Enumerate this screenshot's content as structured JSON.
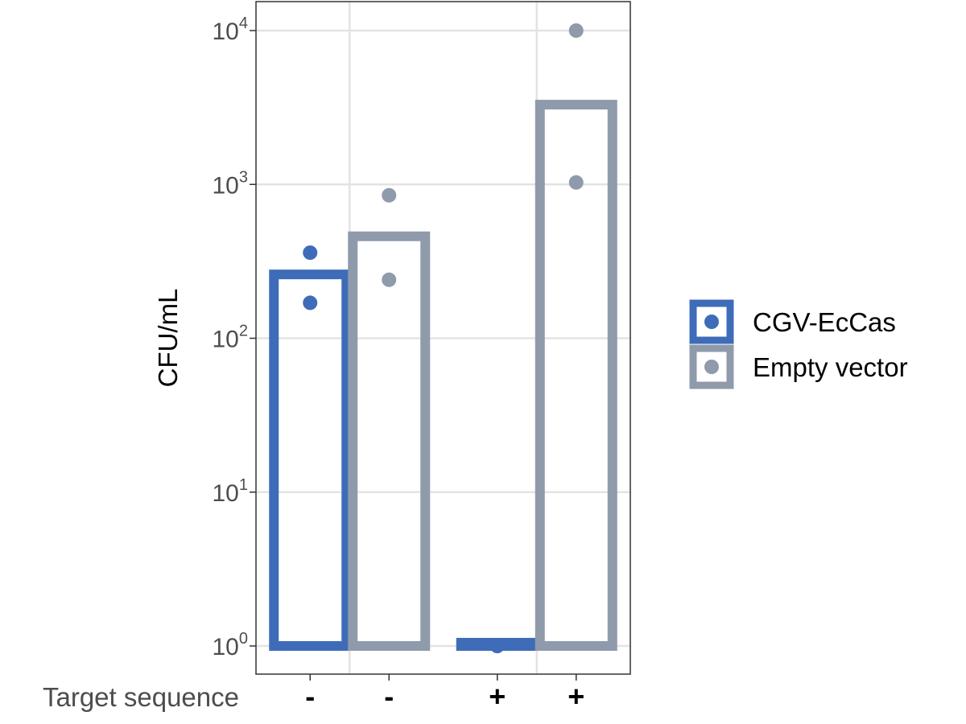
{
  "chart_data": {
    "type": "bar",
    "ylabel": "CFU/mL",
    "y_scale": "log10",
    "ylim": [
      1,
      10000
    ],
    "y_ticks": [
      {
        "value": 1,
        "base": "10",
        "exp": "0"
      },
      {
        "value": 10,
        "base": "10",
        "exp": "1"
      },
      {
        "value": 100,
        "base": "10",
        "exp": "2"
      },
      {
        "value": 1000,
        "base": "10",
        "exp": "3"
      },
      {
        "value": 10000,
        "base": "10",
        "exp": "4"
      }
    ],
    "x_row_label": "Target sequence",
    "groups": [
      "-",
      "+"
    ],
    "bars": [
      {
        "series": "CGV-EcCas",
        "group": "-",
        "label": "-",
        "value": 260,
        "points": [
          360,
          170
        ]
      },
      {
        "series": "Empty vector",
        "group": "-",
        "label": "-",
        "value": 460,
        "points": [
          850,
          240
        ]
      },
      {
        "series": "CGV-EcCas",
        "group": "+",
        "label": "+",
        "value": 1.05,
        "points": [
          1,
          1
        ]
      },
      {
        "series": "Empty vector",
        "group": "+",
        "label": "+",
        "value": 3300,
        "points": [
          10000,
          1030
        ]
      }
    ],
    "series": [
      {
        "name": "CGV-EcCas",
        "color": "#3f6cb8"
      },
      {
        "name": "Empty vector",
        "color": "#8f9aab"
      }
    ],
    "legend_position": "right",
    "grid": true
  }
}
